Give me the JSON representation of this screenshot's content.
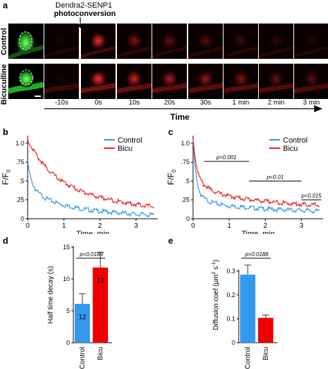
{
  "panel_a": {
    "label": "a",
    "annotation_line1": "Dendra2-SENP1",
    "annotation_line2": "photoconversion",
    "row_labels": [
      "Control",
      "Bicuculline"
    ],
    "time_labels": [
      "-10s",
      "0s",
      "10s",
      "20s",
      "30s",
      "1 min",
      "2 min",
      "3 min"
    ],
    "time_axis_label": "Time",
    "signal_levels": {
      "control": [
        0.05,
        0.9,
        0.45,
        0.35,
        0.3,
        0.2,
        0.15,
        0.1
      ],
      "bicuculline": [
        0.05,
        0.95,
        0.75,
        0.65,
        0.55,
        0.45,
        0.35,
        0.3
      ]
    },
    "colors": {
      "green": "#22cc33",
      "red": "#ff2222"
    }
  },
  "chart_data": [
    {
      "panel": "b",
      "type": "line",
      "ylabel": "F/F",
      "ylabel_sub": "0",
      "xlabel": "Time, min",
      "xlim": [
        0,
        3.6
      ],
      "ylim": [
        0,
        1.1
      ],
      "xticks": [
        0,
        1,
        2,
        3
      ],
      "yticks": [
        0,
        0.25,
        0.5,
        0.75,
        1.0
      ],
      "ytick_labels": [
        "0",
        ".25",
        ".5",
        ".75",
        "1.0"
      ],
      "legend": "top-right",
      "series": [
        {
          "name": "Control",
          "color": "#3399ee",
          "x": [
            0,
            0.1,
            0.2,
            0.3,
            0.5,
            0.75,
            1.0,
            1.5,
            2.0,
            2.5,
            3.0,
            3.5
          ],
          "y": [
            0.72,
            0.5,
            0.4,
            0.34,
            0.27,
            0.22,
            0.18,
            0.13,
            0.1,
            0.08,
            0.06,
            0.05
          ]
        },
        {
          "name": "Bicu",
          "color": "#ee2222",
          "x": [
            0,
            0.1,
            0.2,
            0.3,
            0.5,
            0.75,
            1.0,
            1.5,
            2.0,
            2.5,
            3.0,
            3.5
          ],
          "y": [
            1.05,
            0.95,
            0.88,
            0.8,
            0.68,
            0.57,
            0.48,
            0.36,
            0.28,
            0.23,
            0.19,
            0.16
          ]
        }
      ]
    },
    {
      "panel": "c",
      "type": "line",
      "ylabel": "F/F",
      "ylabel_sub": "0",
      "xlabel": "Time, min",
      "xlim": [
        0,
        3.6
      ],
      "ylim": [
        0,
        1.1
      ],
      "xticks": [
        0,
        1,
        2,
        3
      ],
      "yticks": [
        0,
        0.25,
        0.5,
        0.75,
        1.0
      ],
      "ytick_labels": [
        "0",
        ".25",
        ".5",
        ".75",
        "1.0"
      ],
      "legend": "top-right",
      "series": [
        {
          "name": "Control",
          "color": "#3399ee",
          "x": [
            0,
            0.05,
            0.1,
            0.2,
            0.3,
            0.5,
            0.75,
            1.0,
            1.5,
            2.0,
            2.5,
            3.0,
            3.5
          ],
          "y": [
            1.05,
            0.72,
            0.5,
            0.33,
            0.27,
            0.22,
            0.19,
            0.17,
            0.15,
            0.13,
            0.12,
            0.11,
            0.1
          ]
        },
        {
          "name": "Bicu",
          "color": "#ee2222",
          "x": [
            0,
            0.05,
            0.1,
            0.2,
            0.3,
            0.5,
            0.75,
            1.0,
            1.5,
            2.0,
            2.5,
            3.0,
            3.5
          ],
          "y": [
            1.05,
            0.85,
            0.68,
            0.52,
            0.45,
            0.38,
            0.33,
            0.3,
            0.26,
            0.23,
            0.21,
            0.19,
            0.18
          ]
        }
      ],
      "significance": [
        {
          "label": "p<0.001",
          "x_start": 0.3,
          "x_end": 1.55,
          "y": 0.76
        },
        {
          "label": "p<0.01",
          "x_start": 1.55,
          "x_end": 3.0,
          "y": 0.5
        },
        {
          "label": "p<0.015",
          "x_start": 3.0,
          "x_end": 3.55,
          "y": 0.25
        }
      ]
    },
    {
      "panel": "d",
      "type": "bar",
      "ylabel": "Half time decay (s)",
      "categories": [
        "Control",
        "Bicu"
      ],
      "values": [
        6.1,
        11.8
      ],
      "errors": [
        1.6,
        2.4
      ],
      "n_labels": [
        "12",
        "13"
      ],
      "colors": [
        "#3399ee",
        "#ee0000"
      ],
      "ylim": [
        0,
        15
      ],
      "yticks": [
        0,
        5,
        10,
        15
      ],
      "significance": "p=0.0189"
    },
    {
      "panel": "e",
      "type": "bar",
      "ylabel": "Diffusion coef (µm",
      "ylabel_sup1": "2",
      "ylabel_mid": " s",
      "ylabel_sup2": "-1",
      "ylabel_end": ")",
      "categories": [
        "Control",
        "Bicu"
      ],
      "values": [
        0.285,
        0.104
      ],
      "errors": [
        0.04,
        0.012
      ],
      "colors": [
        "#3399ee",
        "#ee0000"
      ],
      "ylim": [
        0,
        0.4
      ],
      "yticks": [
        0,
        0.1,
        0.2,
        0.3
      ],
      "ytick_labels": [
        "0",
        "0.1",
        "0.2",
        "0.3"
      ],
      "significance": "p=0.0188"
    }
  ]
}
